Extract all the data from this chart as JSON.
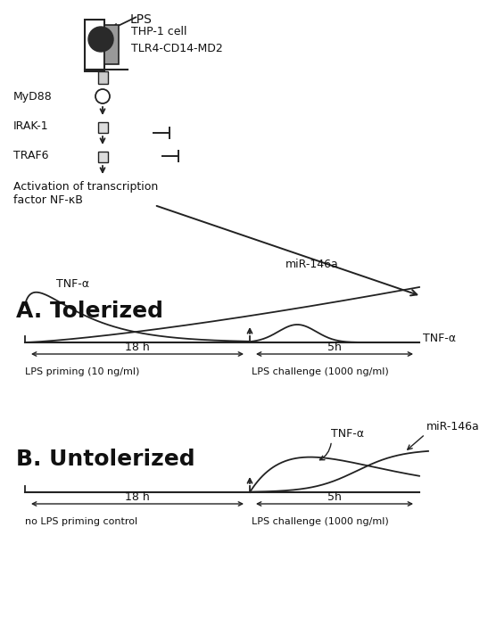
{
  "bg_color": "#ffffff",
  "text_color": "#111111",
  "line_color": "#222222",
  "title_A": "A. Tolerized",
  "title_B": "B. Untolerized",
  "label_lps": "LPS",
  "label_cell": "THP-1 cell",
  "label_tlr": "TLR4-CD14-MD2",
  "label_myd88": "MyD88",
  "label_irak": "IRAK-1",
  "label_traf": "TRAF6",
  "label_nfkb": "Activation of transcription\nfactor NF-κB",
  "label_mir146a": "miR-146a",
  "label_tnfa_A_left": "TNF-α",
  "label_tnfa_A_right": "TNF-α",
  "label_tnfa_B": "TNF-α",
  "label_mir146a_B": "miR-146a",
  "label_18h": "18 h",
  "label_5h": "5h",
  "label_lps_priming": "LPS priming (10 ng/ml)",
  "label_lps_challenge_A": "LPS challenge (1000 ng/ml)",
  "label_no_lps": "no LPS priming control",
  "label_lps_challenge_B": "LPS challenge (1000 ng/ml)"
}
